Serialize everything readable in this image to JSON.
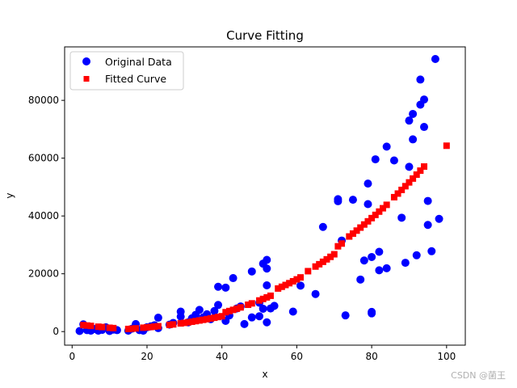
{
  "chart_data": {
    "type": "scatter",
    "title": "Curve Fitting",
    "xlabel": "x",
    "ylabel": "y",
    "xlim": [
      -2,
      105
    ],
    "ylim": [
      -4700,
      98500
    ],
    "xticks": [
      0,
      20,
      40,
      60,
      80,
      100
    ],
    "yticks": [
      0,
      20000,
      40000,
      60000,
      80000
    ],
    "ytick_labels": [
      "0",
      "20000",
      "40000",
      "60000",
      "80000"
    ],
    "grid": false,
    "legend_position": "top-left",
    "series": [
      {
        "name": "Original Data",
        "marker": "circle",
        "color": "#0000ff",
        "points": [
          [
            2,
            200
          ],
          [
            3,
            2500
          ],
          [
            4,
            500
          ],
          [
            5,
            300
          ],
          [
            6,
            900
          ],
          [
            7,
            300
          ],
          [
            8,
            600
          ],
          [
            9,
            1500
          ],
          [
            10,
            200
          ],
          [
            11,
            700
          ],
          [
            12,
            500
          ],
          [
            15,
            300
          ],
          [
            16,
            1000
          ],
          [
            17,
            2600
          ],
          [
            18,
            500
          ],
          [
            19,
            300
          ],
          [
            20,
            1500
          ],
          [
            21,
            1800
          ],
          [
            22,
            2200
          ],
          [
            23,
            1200
          ],
          [
            23,
            4800
          ],
          [
            26,
            2400
          ],
          [
            27,
            3000
          ],
          [
            29,
            5200
          ],
          [
            29,
            6900
          ],
          [
            31,
            3200
          ],
          [
            32,
            4600
          ],
          [
            33,
            5800
          ],
          [
            34,
            7500
          ],
          [
            35,
            4900
          ],
          [
            36,
            6000
          ],
          [
            37,
            4300
          ],
          [
            38,
            7100
          ],
          [
            39,
            9200
          ],
          [
            39,
            15500
          ],
          [
            41,
            15200
          ],
          [
            41,
            3700
          ],
          [
            42,
            5600
          ],
          [
            43,
            18500
          ],
          [
            44,
            8000
          ],
          [
            45,
            8700
          ],
          [
            46,
            2600
          ],
          [
            48,
            4900
          ],
          [
            48,
            20800
          ],
          [
            50,
            5300
          ],
          [
            50,
            10000
          ],
          [
            51,
            7900
          ],
          [
            51,
            23500
          ],
          [
            52,
            16000
          ],
          [
            52,
            24800
          ],
          [
            52,
            21800
          ],
          [
            52,
            3200
          ],
          [
            53,
            8000
          ],
          [
            54,
            8900
          ],
          [
            59,
            6900
          ],
          [
            61,
            15900
          ],
          [
            65,
            13000
          ],
          [
            67,
            36200
          ],
          [
            71,
            45100
          ],
          [
            71,
            45800
          ],
          [
            72,
            31500
          ],
          [
            73,
            5600
          ],
          [
            75,
            45600
          ],
          [
            77,
            18000
          ],
          [
            78,
            24600
          ],
          [
            79,
            44100
          ],
          [
            79,
            51200
          ],
          [
            80,
            25800
          ],
          [
            80,
            6300
          ],
          [
            80,
            6800
          ],
          [
            81,
            59600
          ],
          [
            82,
            27600
          ],
          [
            82,
            21200
          ],
          [
            84,
            64000
          ],
          [
            84,
            21900
          ],
          [
            86,
            59200
          ],
          [
            88,
            39400
          ],
          [
            89,
            23800
          ],
          [
            90,
            57000
          ],
          [
            90,
            73000
          ],
          [
            91,
            66500
          ],
          [
            91,
            75300
          ],
          [
            92,
            26400
          ],
          [
            93,
            87200
          ],
          [
            93,
            78500
          ],
          [
            94,
            80300
          ],
          [
            94,
            70800
          ],
          [
            95,
            45200
          ],
          [
            95,
            36900
          ],
          [
            96,
            27800
          ],
          [
            97,
            94300
          ],
          [
            98,
            39000
          ]
        ]
      },
      {
        "name": "Fitted Curve",
        "marker": "square",
        "color": "#ff0000",
        "points": [
          [
            3,
            2240
          ],
          [
            4,
            2092
          ],
          [
            5,
            1955
          ],
          [
            7,
            1685
          ],
          [
            8,
            1563
          ],
          [
            10,
            1317
          ],
          [
            11,
            1205
          ],
          [
            15,
            900
          ],
          [
            16,
            1003
          ],
          [
            17,
            1108
          ],
          [
            19,
            1336
          ],
          [
            20,
            1459
          ],
          [
            21,
            1586
          ],
          [
            22,
            1720
          ],
          [
            23,
            1860
          ],
          [
            26,
            2317
          ],
          [
            27,
            2483
          ],
          [
            29,
            2833
          ],
          [
            30,
            3021
          ],
          [
            31,
            3215
          ],
          [
            32,
            3416
          ],
          [
            33,
            3625
          ],
          [
            34,
            3842
          ],
          [
            35,
            4066
          ],
          [
            36,
            4297
          ],
          [
            37,
            4537
          ],
          [
            38,
            4785
          ],
          [
            39,
            5041
          ],
          [
            40,
            5305
          ],
          [
            41,
            6700
          ],
          [
            42,
            7100
          ],
          [
            43,
            7510
          ],
          [
            44,
            7930
          ],
          [
            45,
            8370
          ],
          [
            47,
            9280
          ],
          [
            48,
            9760
          ],
          [
            50,
            10760
          ],
          [
            51,
            11290
          ],
          [
            52,
            11830
          ],
          [
            53,
            12390
          ],
          [
            55,
            14900
          ],
          [
            56,
            15500
          ],
          [
            57,
            16120
          ],
          [
            58,
            16750
          ],
          [
            59,
            17400
          ],
          [
            60,
            18060
          ],
          [
            61,
            18740
          ],
          [
            63,
            20900
          ],
          [
            65,
            22500
          ],
          [
            66,
            23300
          ],
          [
            67,
            24140
          ],
          [
            68,
            24990
          ],
          [
            69,
            25860
          ],
          [
            70,
            26750
          ],
          [
            71,
            29500
          ],
          [
            72,
            30460
          ],
          [
            74,
            32900
          ],
          [
            75,
            33900
          ],
          [
            76,
            34930
          ],
          [
            77,
            35980
          ],
          [
            78,
            37050
          ],
          [
            79,
            38140
          ],
          [
            80,
            39250
          ],
          [
            81,
            40370
          ],
          [
            82,
            41510
          ],
          [
            83,
            42670
          ],
          [
            84,
            43850
          ],
          [
            86,
            46500
          ],
          [
            87,
            47750
          ],
          [
            88,
            49010
          ],
          [
            89,
            50300
          ],
          [
            90,
            51610
          ],
          [
            91,
            52940
          ],
          [
            92,
            54300
          ],
          [
            93,
            55680
          ],
          [
            94,
            57100
          ],
          [
            100,
            64300
          ]
        ]
      }
    ]
  },
  "watermark": "CSDN @菌王"
}
